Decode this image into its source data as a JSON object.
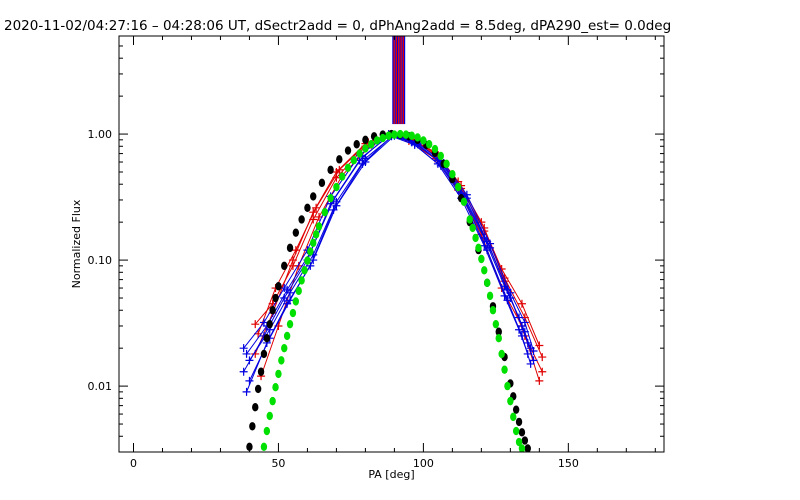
{
  "chart_data": {
    "type": "line",
    "title": "2020-11-02/04:27:16 – 04:28:06 UT, dSectr2add = 0, dPhAng2add = 8.5deg, dPA290_est=  0.0deg",
    "xlabel": "PA [deg]",
    "ylabel": "Normalized Flux",
    "xlim": [
      -5,
      183
    ],
    "ylim": [
      0.003,
      6.0
    ],
    "yscale": "log",
    "xticks": [
      0,
      50,
      100,
      150
    ],
    "xtick_labels": [
      "0",
      "50",
      "100",
      "150"
    ],
    "yticks": [
      0.01,
      0.1,
      1.0
    ],
    "ytick_labels": [
      "0.01",
      "0.10",
      "1.00"
    ],
    "grid": false,
    "legend": "none",
    "colors": {
      "red": "#e00000",
      "blue": "#0000e0",
      "black": "#000000",
      "green": "#00e000"
    },
    "series": [
      {
        "color": "red",
        "style": "line+plus",
        "curves": [
          {
            "x": [
              42,
              48,
              55,
              62,
              70,
              80,
              88,
              95,
              104,
              112,
              120,
              127,
              134,
              140
            ],
            "y": [
              0.031,
              0.045,
              0.09,
              0.21,
              0.45,
              0.8,
              1.0,
              0.93,
              0.72,
              0.42,
              0.2,
              0.085,
              0.045,
              0.021
            ]
          },
          {
            "x": [
              43,
              49,
              56,
              63,
              71,
              81,
              89,
              96,
              105,
              113,
              121,
              128,
              135,
              141
            ],
            "y": [
              0.026,
              0.06,
              0.12,
              0.26,
              0.52,
              0.86,
              1.0,
              0.9,
              0.66,
              0.37,
              0.17,
              0.072,
              0.035,
              0.017
            ]
          },
          {
            "x": [
              42,
              48,
              55,
              62,
              70,
              80,
              88,
              95,
              104,
              112,
              120,
              127,
              134,
              140
            ],
            "y": [
              0.018,
              0.038,
              0.1,
              0.24,
              0.5,
              0.84,
              1.0,
              0.88,
              0.64,
              0.36,
              0.16,
              0.06,
              0.03,
              0.011
            ]
          },
          {
            "x": [
              44,
              50,
              57,
              64,
              72,
              82,
              89,
              96,
              105,
              113,
              121,
              128,
              135,
              141
            ],
            "y": [
              0.012,
              0.03,
              0.09,
              0.22,
              0.47,
              0.82,
              1.0,
              0.91,
              0.68,
              0.39,
              0.18,
              0.068,
              0.025,
              0.013
            ]
          }
        ]
      },
      {
        "color": "blue",
        "style": "line+plus",
        "curves": [
          {
            "x": [
              38,
              45,
              52,
              60,
              68,
              78,
              88,
              96,
              105,
              113,
              121,
              128,
              133,
              136
            ],
            "y": [
              0.02,
              0.032,
              0.06,
              0.12,
              0.32,
              0.68,
              1.0,
              0.88,
              0.62,
              0.34,
              0.15,
              0.062,
              0.035,
              0.022
            ]
          },
          {
            "x": [
              38,
              45,
              52,
              60,
              68,
              78,
              88,
              96,
              105,
              113,
              121,
              128,
              133,
              136
            ],
            "y": [
              0.013,
              0.025,
              0.05,
              0.1,
              0.28,
              0.62,
              0.98,
              0.86,
              0.58,
              0.31,
              0.13,
              0.052,
              0.028,
              0.018
            ]
          },
          {
            "x": [
              39,
              46,
              53,
              61,
              69,
              79,
              89,
              97,
              106,
              114,
              122,
              129,
              134,
              137
            ],
            "y": [
              0.018,
              0.03,
              0.058,
              0.115,
              0.3,
              0.66,
              1.0,
              0.84,
              0.6,
              0.32,
              0.14,
              0.058,
              0.03,
              0.02
            ]
          },
          {
            "x": [
              39,
              46,
              53,
              61,
              69,
              79,
              89,
              97,
              106,
              114,
              122,
              129,
              134,
              137
            ],
            "y": [
              0.009,
              0.022,
              0.045,
              0.09,
              0.25,
              0.58,
              0.96,
              0.82,
              0.56,
              0.3,
              0.12,
              0.048,
              0.025,
              0.015
            ]
          },
          {
            "x": [
              40,
              47,
              54,
              62,
              70,
              80,
              90,
              98,
              107,
              115,
              123,
              130,
              135,
              138
            ],
            "y": [
              0.016,
              0.028,
              0.055,
              0.11,
              0.29,
              0.64,
              0.99,
              0.85,
              0.59,
              0.33,
              0.135,
              0.055,
              0.032,
              0.019
            ]
          },
          {
            "x": [
              40,
              47,
              54,
              62,
              70,
              80,
              90,
              98,
              107,
              115,
              123,
              130,
              135,
              138
            ],
            "y": [
              0.011,
              0.024,
              0.048,
              0.1,
              0.27,
              0.6,
              0.97,
              0.83,
              0.57,
              0.31,
              0.125,
              0.05,
              0.027,
              0.016
            ]
          }
        ]
      },
      {
        "color": "black",
        "style": "dots",
        "x": [
          40,
          41,
          42,
          43,
          44,
          45,
          46,
          47,
          48,
          49,
          50,
          52,
          54,
          56,
          58,
          60,
          62,
          65,
          68,
          71,
          74,
          77,
          80,
          83,
          86,
          89,
          92,
          95,
          98,
          101,
          104,
          107,
          110,
          113,
          116,
          119,
          122,
          124,
          126,
          128,
          130,
          131,
          132,
          133,
          134,
          135,
          136
        ],
        "y": [
          0.0033,
          0.0048,
          0.0068,
          0.0095,
          0.013,
          0.018,
          0.024,
          0.031,
          0.04,
          0.05,
          0.062,
          0.09,
          0.125,
          0.165,
          0.21,
          0.26,
          0.32,
          0.41,
          0.52,
          0.63,
          0.74,
          0.83,
          0.9,
          0.96,
          0.99,
          1.0,
          0.99,
          0.96,
          0.9,
          0.82,
          0.71,
          0.58,
          0.44,
          0.31,
          0.2,
          0.12,
          0.066,
          0.043,
          0.027,
          0.017,
          0.0105,
          0.0083,
          0.0065,
          0.0052,
          0.0043,
          0.0037,
          0.0032
        ]
      },
      {
        "color": "green",
        "style": "dots",
        "x": [
          45,
          46,
          47,
          48,
          49,
          50,
          51,
          52,
          53,
          54,
          55,
          56,
          57,
          58,
          59,
          60,
          61,
          62,
          63,
          64,
          66,
          68,
          70,
          72,
          74,
          76,
          78,
          80,
          82,
          84,
          86,
          88,
          90,
          92,
          94,
          96,
          98,
          100,
          102,
          104,
          106,
          108,
          110,
          112,
          114,
          116,
          117,
          118,
          119,
          120,
          121,
          122,
          123,
          124,
          125,
          126,
          127,
          128,
          129,
          130,
          131,
          132,
          133,
          134
        ],
        "y": [
          0.0033,
          0.0044,
          0.0058,
          0.0076,
          0.0098,
          0.0125,
          0.016,
          0.02,
          0.025,
          0.031,
          0.038,
          0.047,
          0.057,
          0.069,
          0.083,
          0.099,
          0.117,
          0.137,
          0.16,
          0.185,
          0.24,
          0.31,
          0.38,
          0.46,
          0.54,
          0.62,
          0.7,
          0.77,
          0.83,
          0.89,
          0.93,
          0.97,
          0.99,
          1.0,
          0.99,
          0.97,
          0.94,
          0.89,
          0.83,
          0.76,
          0.67,
          0.58,
          0.48,
          0.38,
          0.29,
          0.21,
          0.18,
          0.15,
          0.125,
          0.102,
          0.083,
          0.066,
          0.052,
          0.04,
          0.031,
          0.024,
          0.018,
          0.0135,
          0.01,
          0.0076,
          0.0057,
          0.0044,
          0.0036,
          0.0032
        ]
      },
      {
        "color": "blue",
        "style": "vertical-bars",
        "x": [
          89.5,
          90.3,
          91.1,
          91.9,
          92.7,
          93.5
        ],
        "y_from": 1.2,
        "y_to": 6.0
      },
      {
        "color": "red",
        "style": "vertical-bars",
        "x": [
          89.9,
          90.7,
          91.5,
          92.3,
          93.1
        ],
        "y_from": 1.2,
        "y_to": 6.0
      }
    ]
  }
}
